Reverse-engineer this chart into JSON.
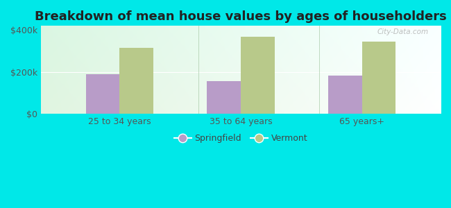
{
  "title": "Breakdown of mean house values by ages of householders",
  "categories": [
    "25 to 34 years",
    "35 to 64 years",
    "65 years+"
  ],
  "springfield_values": [
    190000,
    155000,
    182000
  ],
  "vermont_values": [
    315000,
    368000,
    345000
  ],
  "springfield_color": "#b89cc8",
  "vermont_color": "#b8c98a",
  "background_color": "#00e8e8",
  "ylim": [
    0,
    420000
  ],
  "yticks": [
    0,
    200000,
    400000
  ],
  "ytick_labels": [
    "$0",
    "$200k",
    "$400k"
  ],
  "title_fontsize": 13,
  "tick_fontsize": 9,
  "legend_labels": [
    "Springfield",
    "Vermont"
  ],
  "bar_width": 0.28,
  "watermark": "City-Data.com"
}
